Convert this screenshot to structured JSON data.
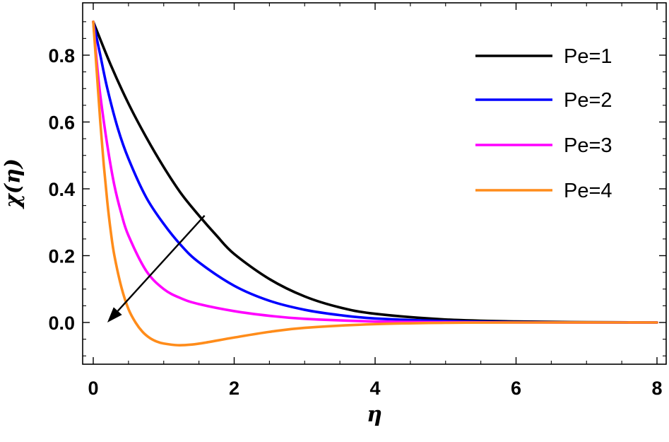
{
  "chart_data": {
    "type": "line",
    "title": "",
    "xlabel": "η",
    "ylabel": "χ(η)",
    "xlim": [
      0,
      8
    ],
    "ylim": [
      -0.125,
      0.9
    ],
    "xticks": [
      0,
      2,
      4,
      6,
      8
    ],
    "xtick_labels": [
      "0",
      "2",
      "4",
      "6",
      "8"
    ],
    "yticks": [
      0.0,
      0.2,
      0.4,
      0.6,
      0.8
    ],
    "ytick_labels": [
      "0.0",
      "0.2",
      "0.4",
      "0.6",
      "0.8"
    ],
    "grid": false,
    "legend_position": "top-right",
    "annotation": "arrow indicating decreasing trend with increasing Pe",
    "annotation_arrow": {
      "from": [
        1.58,
        0.32
      ],
      "to": [
        0.2,
        0.0
      ]
    },
    "series": [
      {
        "name": "Pe=1",
        "color": "#000000",
        "x": [
          0,
          0.25,
          0.5,
          0.75,
          1.0,
          1.25,
          1.5,
          1.75,
          2.0,
          2.5,
          3.0,
          3.5,
          4.0,
          5.0,
          6.0,
          7.0,
          8.0
        ],
        "y": [
          0.9,
          0.77,
          0.655,
          0.555,
          0.465,
          0.385,
          0.32,
          0.26,
          0.205,
          0.13,
          0.078,
          0.045,
          0.026,
          0.009,
          0.003,
          0.001,
          0.0
        ]
      },
      {
        "name": "Pe=2",
        "color": "#0000ff",
        "x": [
          0,
          0.1,
          0.2,
          0.35,
          0.5,
          0.75,
          1.0,
          1.25,
          1.5,
          2.0,
          2.5,
          3.0,
          3.5,
          4.0,
          5.0,
          6.0,
          7.0,
          8.0
        ],
        "y": [
          0.9,
          0.8,
          0.7,
          0.58,
          0.49,
          0.375,
          0.295,
          0.23,
          0.18,
          0.11,
          0.065,
          0.038,
          0.022,
          0.012,
          0.004,
          0.001,
          0.0,
          0.0
        ]
      },
      {
        "name": "Pe=3",
        "color": "#ff00ff",
        "x": [
          0,
          0.05,
          0.1,
          0.2,
          0.3,
          0.4,
          0.5,
          0.75,
          1.0,
          1.25,
          1.5,
          2.0,
          2.5,
          3.0,
          4.0,
          5.0,
          6.0,
          8.0
        ],
        "y": [
          0.9,
          0.78,
          0.68,
          0.53,
          0.41,
          0.325,
          0.26,
          0.155,
          0.1,
          0.072,
          0.055,
          0.034,
          0.02,
          0.011,
          0.003,
          0.001,
          0.0,
          0.0
        ]
      },
      {
        "name": "Pe=4",
        "color": "#ff8c1a",
        "x": [
          0,
          0.05,
          0.1,
          0.15,
          0.2,
          0.25,
          0.3,
          0.4,
          0.5,
          0.6,
          0.7,
          0.8,
          0.9,
          1.0,
          1.2,
          1.4,
          1.6,
          2.0,
          2.5,
          3.0,
          4.0,
          5.0,
          6.0,
          8.0
        ],
        "y": [
          0.9,
          0.75,
          0.6,
          0.47,
          0.36,
          0.27,
          0.2,
          0.105,
          0.04,
          0.0,
          -0.028,
          -0.046,
          -0.057,
          -0.063,
          -0.068,
          -0.066,
          -0.06,
          -0.045,
          -0.028,
          -0.016,
          -0.005,
          -0.001,
          0.0,
          0.0
        ]
      }
    ]
  }
}
